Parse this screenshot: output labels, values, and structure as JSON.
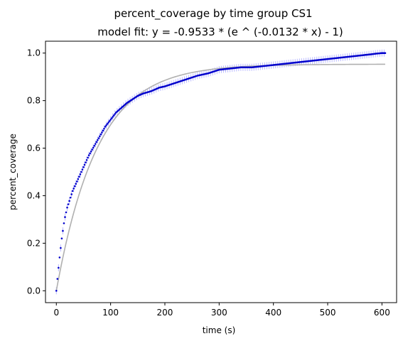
{
  "chart_data": {
    "type": "scatter",
    "title": "percent_coverage by time group CS1",
    "subtitle": "model fit: y = -0.9533 * (e ^ (-0.0132 * x) - 1)",
    "xlabel": "time (s)",
    "ylabel": "percent_coverage",
    "xlim": [
      -20,
      627
    ],
    "ylim": [
      -0.05,
      1.05
    ],
    "xticks": [
      0,
      100,
      200,
      300,
      400,
      500,
      600
    ],
    "yticks": [
      0.0,
      0.2,
      0.4,
      0.6,
      0.8,
      1.0
    ],
    "xtick_labels": [
      "0",
      "100",
      "200",
      "300",
      "400",
      "500",
      "600"
    ],
    "ytick_labels": [
      "0.0",
      "0.2",
      "0.4",
      "0.6",
      "0.8",
      "1.0"
    ],
    "x_range": [
      0,
      606
    ],
    "grid": false,
    "series": [
      {
        "kind": "observed",
        "color": "#0000cc",
        "error_color": "#aaaaff",
        "x": [
          0,
          2,
          5,
          10,
          15,
          20,
          30,
          40,
          50,
          60,
          70,
          80,
          90,
          100,
          110,
          120,
          130,
          140,
          150,
          160,
          175,
          190,
          200,
          220,
          240,
          260,
          280,
          300,
          320,
          340,
          360,
          380,
          400,
          420,
          440,
          460,
          480,
          500,
          520,
          540,
          560,
          580,
          590,
          600,
          606
        ],
        "y": [
          0.0,
          0.05,
          0.12,
          0.22,
          0.3,
          0.35,
          0.42,
          0.47,
          0.52,
          0.57,
          0.61,
          0.65,
          0.69,
          0.72,
          0.75,
          0.77,
          0.79,
          0.805,
          0.82,
          0.83,
          0.84,
          0.855,
          0.86,
          0.875,
          0.89,
          0.905,
          0.915,
          0.93,
          0.935,
          0.94,
          0.94,
          0.945,
          0.95,
          0.955,
          0.96,
          0.965,
          0.97,
          0.975,
          0.98,
          0.985,
          0.99,
          0.995,
          0.998,
          1.0,
          1.0
        ],
        "err": 0.015
      },
      {
        "kind": "model",
        "color": "#b0b0b0",
        "a": 0.9533,
        "b": 0.0132
      }
    ]
  }
}
